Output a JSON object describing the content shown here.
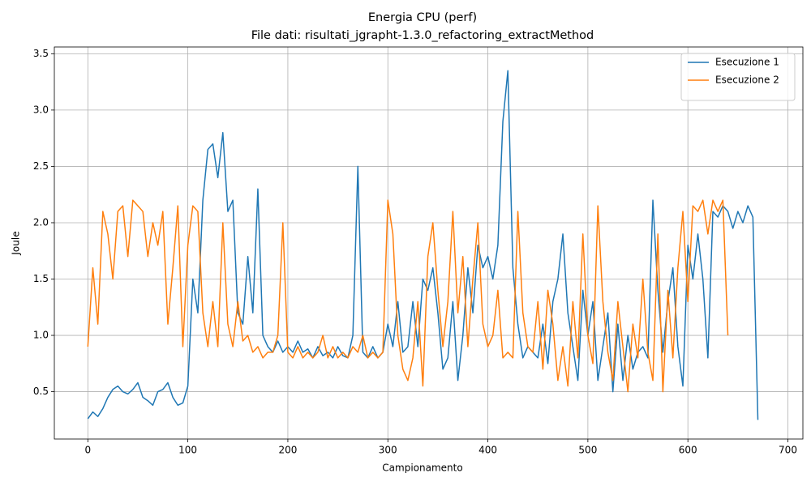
{
  "chart_data": {
    "type": "line",
    "title": "Energia CPU (perf)",
    "subtitle": "File dati: risultati_jgrapht-1.3.0_refactoring_extractMethod",
    "x_label": "Campionamento",
    "y_label": "Joule",
    "xlim": [
      -33.5,
      715
    ],
    "ylim": [
      0.08,
      3.56
    ],
    "xticks": [
      0,
      100,
      200,
      300,
      400,
      500,
      600,
      700
    ],
    "yticks": [
      0.5,
      {
        "value": 1,
        "label": "1.0"
      },
      1.5,
      {
        "value": 2,
        "label": "2.0"
      },
      2.5,
      {
        "value": 3,
        "label": "3.0"
      },
      3.5
    ],
    "grid": true,
    "legend": "upper right",
    "series": [
      {
        "name": "Esecuzione 1",
        "color": "#1f77b4",
        "x": [
          0,
          5,
          10,
          15,
          20,
          25,
          30,
          35,
          40,
          45,
          50,
          55,
          60,
          65,
          70,
          75,
          80,
          85,
          90,
          95,
          100,
          105,
          110,
          115,
          120,
          125,
          130,
          135,
          140,
          145,
          150,
          155,
          160,
          165,
          170,
          175,
          180,
          185,
          190,
          195,
          200,
          205,
          210,
          215,
          220,
          225,
          230,
          235,
          240,
          245,
          250,
          255,
          260,
          265,
          270,
          275,
          280,
          285,
          290,
          295,
          300,
          305,
          310,
          315,
          320,
          325,
          330,
          335,
          340,
          345,
          350,
          355,
          360,
          365,
          370,
          375,
          380,
          385,
          390,
          395,
          400,
          405,
          410,
          415,
          420,
          425,
          430,
          435,
          440,
          445,
          450,
          455,
          460,
          465,
          470,
          475,
          480,
          485,
          490,
          495,
          500,
          505,
          510,
          515,
          520,
          525,
          530,
          535,
          540,
          545,
          550,
          555,
          560,
          565,
          570,
          575,
          580,
          585,
          590,
          595,
          600,
          605,
          610,
          615,
          620,
          625,
          630,
          635,
          640,
          645,
          650,
          655,
          660,
          665,
          670
        ],
        "values": [
          0.26,
          0.32,
          0.28,
          0.35,
          0.45,
          0.52,
          0.55,
          0.5,
          0.48,
          0.52,
          0.58,
          0.45,
          0.42,
          0.38,
          0.5,
          0.52,
          0.58,
          0.45,
          0.38,
          0.4,
          0.55,
          1.5,
          1.2,
          2.2,
          2.65,
          2.7,
          2.4,
          2.8,
          2.1,
          2.2,
          1.2,
          1.1,
          1.7,
          1.2,
          2.3,
          1.0,
          0.9,
          0.85,
          0.95,
          0.85,
          0.9,
          0.85,
          0.95,
          0.85,
          0.88,
          0.8,
          0.9,
          0.82,
          0.85,
          0.8,
          0.9,
          0.82,
          0.8,
          1.0,
          2.5,
          0.85,
          0.8,
          0.9,
          0.8,
          0.85,
          1.1,
          0.9,
          1.3,
          0.85,
          0.9,
          1.3,
          0.9,
          1.5,
          1.4,
          1.6,
          1.2,
          0.7,
          0.8,
          1.3,
          0.6,
          1.0,
          1.6,
          1.2,
          1.8,
          1.6,
          1.7,
          1.5,
          1.8,
          2.9,
          3.35,
          1.6,
          1.1,
          0.8,
          0.9,
          0.85,
          0.8,
          1.1,
          0.75,
          1.3,
          1.5,
          1.9,
          1.2,
          0.9,
          0.6,
          1.4,
          1.0,
          1.3,
          0.6,
          0.9,
          1.2,
          0.5,
          1.1,
          0.6,
          1.0,
          0.7,
          0.85,
          0.9,
          0.8,
          2.2,
          1.4,
          0.85,
          1.3,
          1.6,
          0.9,
          0.55,
          1.8,
          1.5,
          1.9,
          1.5,
          0.8,
          2.1,
          2.05,
          2.15,
          2.1,
          1.95,
          2.1,
          2.0,
          2.15,
          2.05,
          0.25
        ]
      },
      {
        "name": "Esecuzione 2",
        "color": "#ff7f0e",
        "x": [
          0,
          5,
          10,
          15,
          20,
          25,
          30,
          35,
          40,
          45,
          50,
          55,
          60,
          65,
          70,
          75,
          80,
          85,
          90,
          95,
          100,
          105,
          110,
          115,
          120,
          125,
          130,
          135,
          140,
          145,
          150,
          155,
          160,
          165,
          170,
          175,
          180,
          185,
          190,
          195,
          200,
          205,
          210,
          215,
          220,
          225,
          230,
          235,
          240,
          245,
          250,
          255,
          260,
          265,
          270,
          275,
          280,
          285,
          290,
          295,
          300,
          305,
          310,
          315,
          320,
          325,
          330,
          335,
          340,
          345,
          350,
          355,
          360,
          365,
          370,
          375,
          380,
          385,
          390,
          395,
          400,
          405,
          410,
          415,
          420,
          425,
          430,
          435,
          440,
          445,
          450,
          455,
          460,
          465,
          470,
          475,
          480,
          485,
          490,
          495,
          500,
          505,
          510,
          515,
          520,
          525,
          530,
          535,
          540,
          545,
          550,
          555,
          560,
          565,
          570,
          575,
          580,
          585,
          590,
          595,
          600,
          605,
          610,
          615,
          620,
          625,
          630,
          635,
          640
        ],
        "values": [
          0.9,
          1.6,
          1.1,
          2.1,
          1.9,
          1.5,
          2.1,
          2.15,
          1.7,
          2.2,
          2.15,
          2.1,
          1.7,
          2.0,
          1.8,
          2.1,
          1.1,
          1.6,
          2.15,
          0.9,
          1.8,
          2.15,
          2.1,
          1.2,
          0.9,
          1.3,
          0.9,
          2.0,
          1.1,
          0.9,
          1.3,
          0.95,
          1.0,
          0.85,
          0.9,
          0.8,
          0.85,
          0.85,
          1.0,
          2.0,
          0.85,
          0.8,
          0.9,
          0.8,
          0.85,
          0.8,
          0.85,
          1.0,
          0.8,
          0.9,
          0.8,
          0.85,
          0.8,
          0.9,
          0.85,
          1.0,
          0.8,
          0.85,
          0.8,
          0.85,
          2.2,
          1.9,
          1.0,
          0.7,
          0.6,
          0.8,
          1.3,
          0.55,
          1.7,
          2.0,
          1.4,
          0.9,
          1.3,
          2.1,
          1.2,
          1.7,
          0.9,
          1.5,
          2.0,
          1.1,
          0.9,
          1.0,
          1.4,
          0.8,
          0.85,
          0.8,
          2.1,
          1.2,
          0.9,
          0.85,
          1.3,
          0.7,
          1.4,
          1.1,
          0.6,
          0.9,
          0.55,
          1.3,
          0.8,
          1.9,
          1.0,
          0.75,
          2.15,
          1.3,
          0.85,
          0.6,
          1.3,
          0.9,
          0.5,
          1.1,
          0.8,
          1.5,
          0.85,
          0.6,
          1.9,
          0.5,
          1.4,
          0.8,
          1.6,
          2.1,
          1.3,
          2.15,
          2.1,
          2.2,
          1.9,
          2.2,
          2.1,
          2.2,
          1.0
        ]
      }
    ]
  }
}
